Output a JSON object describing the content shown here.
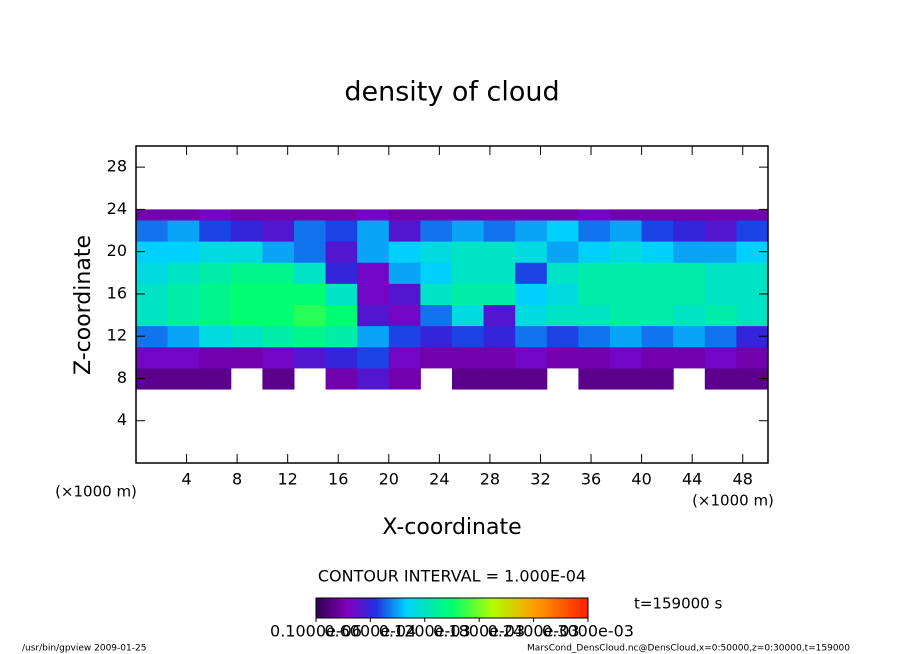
{
  "chart_data": {
    "type": "heatmap",
    "title": "density of cloud",
    "xlabel": "X-coordinate",
    "ylabel": "Z-coordinate",
    "x_unit_label": "(×1000 m)",
    "y_unit_label": "(×1000 m)",
    "contour_text": "CONTOUR INTERVAL = 1.000E-04",
    "time_text": "t=159000 s",
    "footer_left": "/usr/bin/gpview  2009-01-25",
    "footer_right": "MarsCond_DensCloud.nc@DensCloud,x=0:50000,z=0:30000,t=159000",
    "xlim": [
      0,
      50
    ],
    "ylim": [
      0,
      30
    ],
    "xticks": [
      4,
      8,
      12,
      16,
      20,
      24,
      28,
      32,
      36,
      40,
      44,
      48
    ],
    "yticks": [
      4,
      8,
      12,
      16,
      20,
      24,
      28
    ],
    "x_edges": [
      0,
      2.5,
      5,
      7.5,
      10,
      12.5,
      15,
      17.5,
      20,
      22.5,
      25,
      27.5,
      30,
      32.5,
      35,
      37.5,
      40,
      42.5,
      45,
      47.5,
      50
    ],
    "z_edges": [
      7,
      9,
      11,
      13,
      15,
      17,
      19,
      21,
      23,
      24
    ],
    "z": [
      [
        2e-05,
        2e-05,
        2e-05,
        null,
        2e-05,
        null,
        3e-05,
        5e-05,
        3e-05,
        null,
        2e-05,
        2e-05,
        2e-05,
        null,
        2e-05,
        2e-05,
        2e-05,
        null,
        2e-05,
        2e-05
      ],
      [
        4e-05,
        4e-05,
        3e-05,
        3e-05,
        4e-05,
        5e-05,
        6e-05,
        7e-05,
        4e-05,
        3e-05,
        3e-05,
        3e-05,
        4e-05,
        3e-05,
        3e-05,
        4e-05,
        3e-05,
        3e-05,
        4e-05,
        3e-05
      ],
      [
        8e-05,
        9e-05,
        0.00011,
        0.00012,
        0.00013,
        0.00014,
        0.00013,
        9e-05,
        7e-05,
        6e-05,
        7e-05,
        6e-05,
        8e-05,
        7e-05,
        8e-05,
        9e-05,
        8e-05,
        9e-05,
        8e-05,
        6e-05
      ],
      [
        0.00012,
        0.00013,
        0.00014,
        0.00015,
        0.00015,
        0.00016,
        0.00015,
        5e-05,
        4e-05,
        8e-05,
        0.00011,
        5e-05,
        0.00011,
        0.00012,
        0.00012,
        0.00013,
        0.00013,
        0.00012,
        0.00013,
        0.00012
      ],
      [
        0.00012,
        0.00013,
        0.00014,
        0.00015,
        0.00015,
        0.00015,
        0.00012,
        4e-05,
        5e-05,
        0.00012,
        0.00013,
        0.00013,
        0.0001,
        0.00011,
        0.00013,
        0.00013,
        0.00013,
        0.00013,
        0.00012,
        0.00012
      ],
      [
        0.00011,
        0.00012,
        0.00013,
        0.00014,
        0.00014,
        0.00012,
        6e-05,
        4e-05,
        9e-05,
        0.0001,
        0.00012,
        0.00012,
        7e-05,
        0.00012,
        0.00013,
        0.00013,
        0.00013,
        0.00013,
        0.00012,
        0.00012
      ],
      [
        0.0001,
        0.0001,
        0.00011,
        0.00011,
        9e-05,
        8e-05,
        5e-05,
        9e-05,
        0.0001,
        0.00011,
        0.00012,
        0.00012,
        0.00011,
        9e-05,
        0.0001,
        0.00011,
        0.0001,
        9e-05,
        9e-05,
        0.0001
      ],
      [
        8e-05,
        9e-05,
        7e-05,
        6e-05,
        5e-05,
        8e-05,
        7e-05,
        9e-05,
        5e-05,
        8e-05,
        9e-05,
        8e-05,
        9e-05,
        0.0001,
        8e-05,
        9e-05,
        7e-05,
        6e-05,
        5e-05,
        7e-05
      ],
      [
        3e-05,
        3e-05,
        4e-05,
        3e-05,
        3e-05,
        3e-05,
        3e-05,
        4e-05,
        3e-05,
        3e-05,
        3e-05,
        3e-05,
        3e-05,
        3e-05,
        4e-05,
        3e-05,
        3e-05,
        3e-05,
        3e-05,
        3e-05
      ]
    ],
    "clim": [
      1e-07,
      0.0003
    ],
    "colorbar_ticks": [
      {
        "value": 1e-07,
        "label": "0.1000e-06"
      },
      {
        "value": 6e-05,
        "label": "0.6000e-04"
      },
      {
        "value": 0.00012,
        "label": "0.1200e-03"
      },
      {
        "value": 0.00018,
        "label": "0.1800e-03"
      },
      {
        "value": 0.00024,
        "label": "0.2400e-03"
      },
      {
        "value": 0.0003,
        "label": "0.3000e-03"
      }
    ]
  }
}
